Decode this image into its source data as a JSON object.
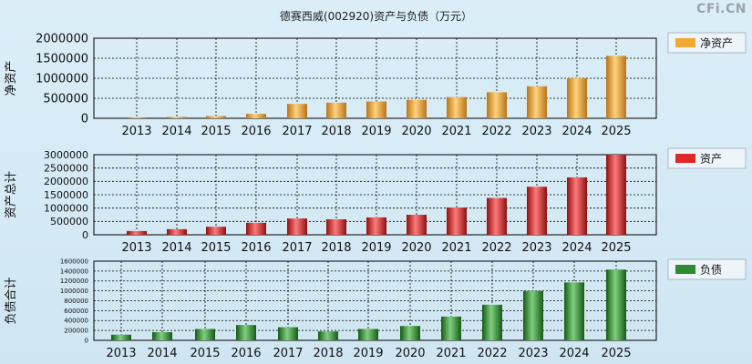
{
  "title": "德赛西威(002920)资产与负债（万元）",
  "brand": "CFi.CN",
  "colors": {
    "net_assets": "#f0a830",
    "assets": "#e02828",
    "liabilities": "#2e8b2e"
  },
  "chart_data": [
    {
      "type": "bar",
      "ylabel": "净资产",
      "legend": "净资产",
      "legend_position": "right",
      "grid": true,
      "ylim": [
        0,
        2000000
      ],
      "yticks": [
        "2000000",
        "1500000",
        "1000000",
        "500000",
        "0"
      ],
      "categories": [
        "2013",
        "2014",
        "2015",
        "2016",
        "2017",
        "2018",
        "2019",
        "2020",
        "2021",
        "2022",
        "2023",
        "2024",
        "2025"
      ],
      "values": [
        25000,
        35000,
        55000,
        110000,
        360000,
        390000,
        420000,
        460000,
        530000,
        650000,
        800000,
        1000000,
        1560000
      ]
    },
    {
      "type": "bar",
      "ylabel": "资产总计",
      "legend": "资产",
      "legend_position": "right",
      "grid": true,
      "ylim": [
        0,
        3000000
      ],
      "yticks": [
        "3000000",
        "2500000",
        "2000000",
        "1500000",
        "1000000",
        "500000",
        "0"
      ],
      "categories": [
        "2013",
        "2014",
        "2015",
        "2016",
        "2017",
        "2018",
        "2019",
        "2020",
        "2021",
        "2022",
        "2023",
        "2024",
        "2025"
      ],
      "values": [
        140000,
        210000,
        300000,
        450000,
        610000,
        580000,
        650000,
        750000,
        1020000,
        1380000,
        1800000,
        2150000,
        3000000
      ]
    },
    {
      "type": "bar",
      "ylabel": "负债合计",
      "legend": "负债",
      "legend_position": "right",
      "grid": true,
      "ylim": [
        0,
        1600000
      ],
      "yticks": [
        "1600000",
        "1400000",
        "1200000",
        "1000000",
        "800000",
        "600000",
        "400000",
        "200000",
        "0"
      ],
      "categories": [
        "2013",
        "2014",
        "2015",
        "2016",
        "2017",
        "2018",
        "2019",
        "2020",
        "2021",
        "2022",
        "2023",
        "2024",
        "2025"
      ],
      "values": [
        115000,
        165000,
        230000,
        310000,
        265000,
        180000,
        230000,
        290000,
        480000,
        720000,
        1000000,
        1170000,
        1430000
      ]
    }
  ]
}
